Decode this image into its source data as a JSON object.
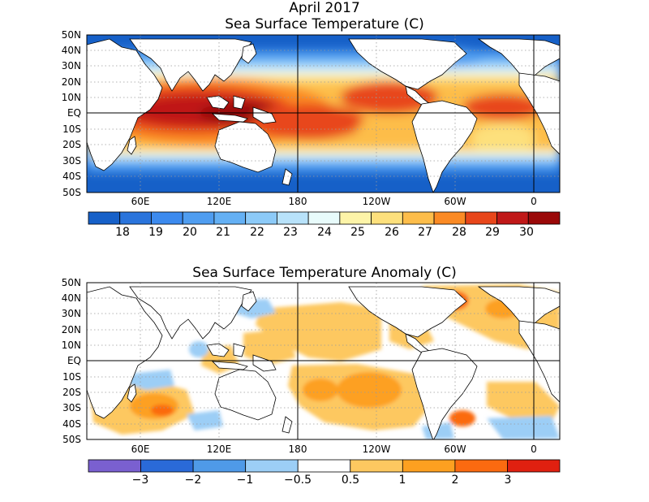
{
  "top_panel": {
    "title_line1": "April 2017",
    "title_line2": "Sea Surface Temperature (C)",
    "lat_labels": [
      "50N",
      "40N",
      "30N",
      "20N",
      "10N",
      "EQ",
      "10S",
      "20S",
      "30S",
      "40S",
      "50S"
    ],
    "lon_labels": [
      "60E",
      "120E",
      "180",
      "120W",
      "60W",
      "0"
    ],
    "colorbar": {
      "colors": [
        "#1660c8",
        "#2a74dc",
        "#3c8aee",
        "#4f9df0",
        "#64b0f4",
        "#8ccaf8",
        "#b8e2fa",
        "#e8fbfb",
        "#fdf4a8",
        "#fde07c",
        "#fdbd4a",
        "#fb8a24",
        "#e8461a",
        "#c01818",
        "#9a0808"
      ],
      "labels": [
        "18",
        "19",
        "20",
        "21",
        "22",
        "23",
        "24",
        "25",
        "26",
        "27",
        "28",
        "29",
        "30"
      ]
    }
  },
  "bottom_panel": {
    "title": "Sea Surface Temperature Anomaly (C)",
    "lat_labels": [
      "50N",
      "40N",
      "30N",
      "20N",
      "10N",
      "EQ",
      "10S",
      "20S",
      "30S",
      "40S",
      "50S"
    ],
    "lon_labels": [
      "60E",
      "120E",
      "180",
      "120W",
      "60W",
      "0"
    ],
    "colorbar": {
      "colors": [
        "#7a60d0",
        "#2a6ad8",
        "#4f9ae8",
        "#9ccef6",
        "#ffffff",
        "#fdc860",
        "#fda020",
        "#fb6a10",
        "#e02010"
      ],
      "labels": [
        "−3",
        "−2",
        "−1",
        "−0.5",
        "0.5",
        "1",
        "2",
        "3"
      ]
    }
  }
}
